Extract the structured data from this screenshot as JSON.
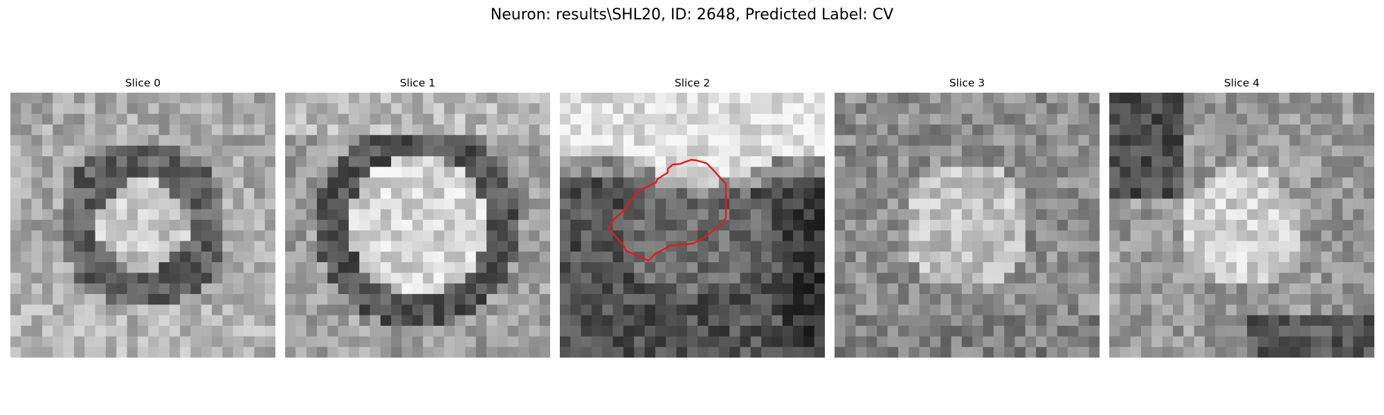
{
  "figure": {
    "title": "Neuron: results\\SHL20, ID: 2648, Predicted Label: CV"
  },
  "panels": [
    {
      "title": "Slice 0",
      "seed": 11,
      "pattern": "ring",
      "has_contour": false
    },
    {
      "title": "Slice 1",
      "seed": 23,
      "pattern": "bright_blob",
      "has_contour": false
    },
    {
      "title": "Slice 2",
      "seed": 37,
      "pattern": "dark_cell_top_bright",
      "has_contour": true
    },
    {
      "title": "Slice 3",
      "seed": 41,
      "pattern": "soft_blob",
      "has_contour": false
    },
    {
      "title": "Slice 4",
      "seed": 53,
      "pattern": "soft_blob_dark_top",
      "has_contour": false
    }
  ],
  "colors": {
    "contour": "#e31a1c",
    "background": "#ffffff"
  }
}
